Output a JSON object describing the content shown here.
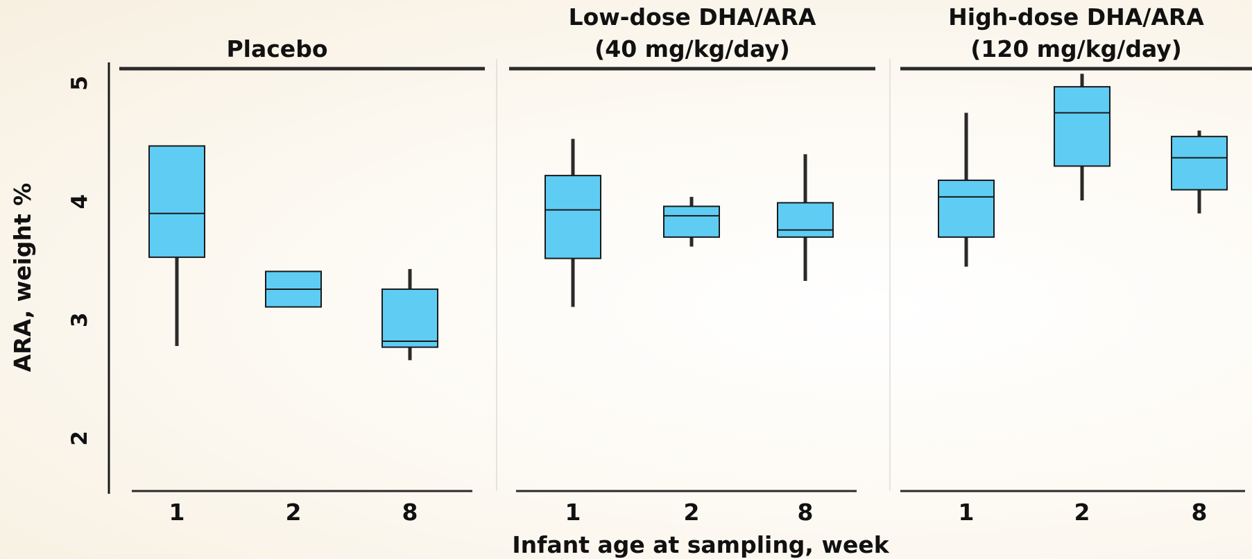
{
  "chart_data": {
    "type": "box",
    "ylabel": "ARA, weight %",
    "xlabel": "Infant age at sampling, week",
    "ylim": [
      1.6,
      5.2
    ],
    "yticks": [
      "2",
      "3",
      "4",
      "5"
    ],
    "categories": [
      "1",
      "2",
      "8"
    ],
    "colors": {
      "box_fill": "#5fcdf3",
      "line": "#2a2a2a"
    },
    "grid": false,
    "panels": [
      {
        "title": "Placebo",
        "title_line2": "",
        "boxes": [
          {
            "week": "1",
            "whisker_low": 2.78,
            "q1": 3.53,
            "median": 3.9,
            "q3": 4.47,
            "whisker_high": 4.47
          },
          {
            "week": "2",
            "whisker_low": 3.11,
            "q1": 3.11,
            "median": 3.26,
            "q3": 3.41,
            "whisker_high": 3.41
          },
          {
            "week": "8",
            "whisker_low": 2.66,
            "q1": 2.77,
            "median": 2.82,
            "q3": 3.26,
            "whisker_high": 3.43
          }
        ]
      },
      {
        "title": "Low-dose DHA/ARA",
        "title_line2": "(40 mg/kg/day)",
        "boxes": [
          {
            "week": "1",
            "whisker_low": 3.11,
            "q1": 3.52,
            "median": 3.93,
            "q3": 4.22,
            "whisker_high": 4.53
          },
          {
            "week": "2",
            "whisker_low": 3.62,
            "q1": 3.7,
            "median": 3.88,
            "q3": 3.96,
            "whisker_high": 4.04
          },
          {
            "week": "8",
            "whisker_low": 3.33,
            "q1": 3.7,
            "median": 3.76,
            "q3": 3.99,
            "whisker_high": 4.4
          }
        ]
      },
      {
        "title": "High-dose DHA/ARA",
        "title_line2": "(120 mg/kg/day)",
        "boxes": [
          {
            "week": "1",
            "whisker_low": 3.45,
            "q1": 3.7,
            "median": 4.04,
            "q3": 4.18,
            "whisker_high": 4.75
          },
          {
            "week": "2",
            "whisker_low": 4.01,
            "q1": 4.3,
            "median": 4.75,
            "q3": 4.97,
            "whisker_high": 5.08
          },
          {
            "week": "8",
            "whisker_low": 3.9,
            "q1": 4.1,
            "median": 4.37,
            "q3": 4.55,
            "whisker_high": 4.6
          }
        ]
      }
    ]
  }
}
